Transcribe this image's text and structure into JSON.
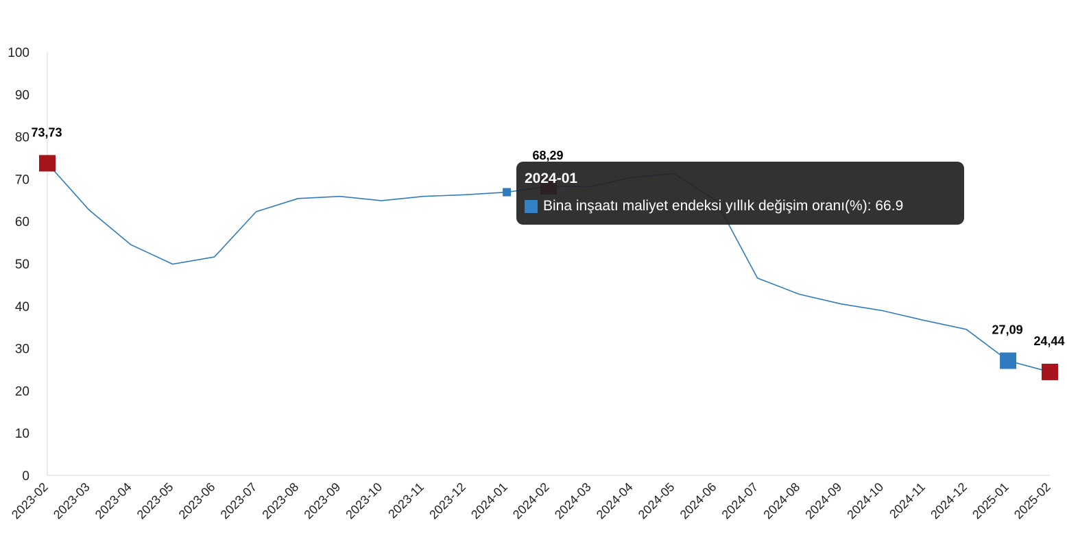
{
  "colors": {
    "line": "#2f7bbf",
    "marker_red": "#a7141b",
    "marker_blue": "#2f7bbf",
    "tooltip_swatch": "#3482c6",
    "axis": "#d6d6d6"
  },
  "tooltip": {
    "title": "2024-01",
    "series_label": "Bina inşaatı maliyet endeksi yıllık değişim oranı(%)",
    "separator": ": ",
    "value": "66.9"
  },
  "chart_data": {
    "type": "line",
    "title": "",
    "xlabel": "",
    "ylabel": "",
    "ylim": [
      0,
      100
    ],
    "yticks": [
      "0",
      "10",
      "20",
      "30",
      "40",
      "50",
      "60",
      "70",
      "80",
      "90",
      "100"
    ],
    "grid": false,
    "legend": "none",
    "categories": [
      "2023-02",
      "2023-03",
      "2023-04",
      "2023-05",
      "2023-06",
      "2023-07",
      "2023-08",
      "2023-09",
      "2023-10",
      "2023-11",
      "2023-12",
      "2024-01",
      "2024-02",
      "2024-03",
      "2024-04",
      "2024-05",
      "2024-06",
      "2024-07",
      "2024-08",
      "2024-09",
      "2024-10",
      "2024-11",
      "2024-12",
      "2025-01",
      "2025-02"
    ],
    "series": [
      {
        "values": [
          73.73,
          62.7,
          54.5,
          49.9,
          51.6,
          62.3,
          65.4,
          65.9,
          64.9,
          65.9,
          66.3,
          66.9,
          68.29,
          68.2,
          70.4,
          71.3,
          65.0,
          46.6,
          42.8,
          40.5,
          38.9,
          36.6,
          34.5,
          27.09,
          24.44
        ]
      }
    ],
    "annotations": [
      {
        "index": 0,
        "text": "73,73",
        "marker": "red"
      },
      {
        "index": 12,
        "text": "68,29",
        "marker": "red"
      },
      {
        "index": 23,
        "text": "27,09",
        "marker": "blue"
      },
      {
        "index": 24,
        "text": "24,44",
        "marker": "red"
      }
    ],
    "hover_index": 11
  }
}
